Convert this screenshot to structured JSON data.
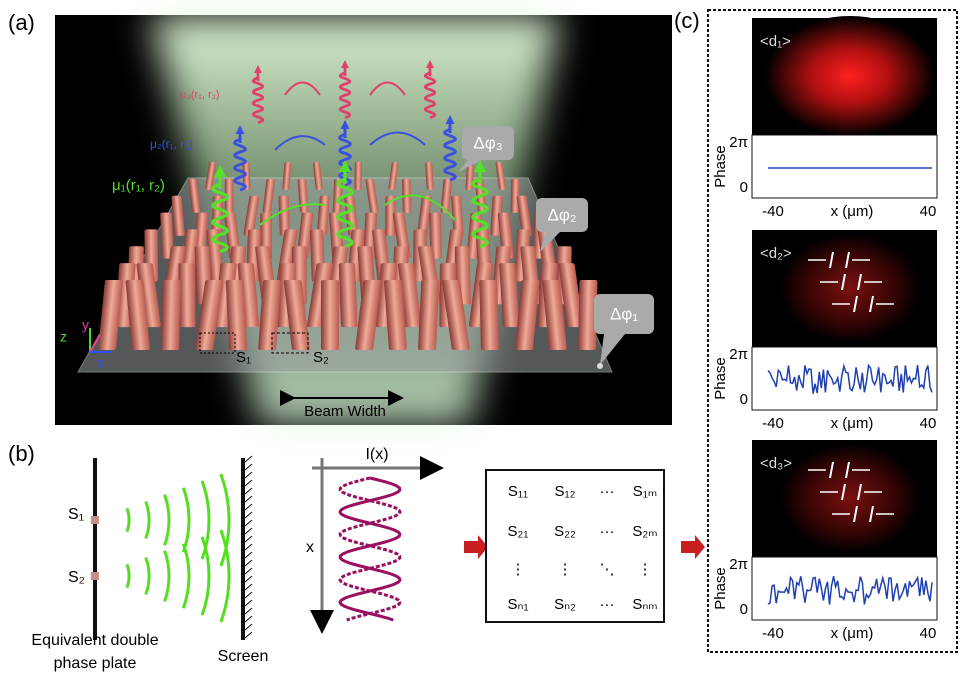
{
  "panel_a": {
    "label": "(a)",
    "mu3": "μ₃(r₁, r₂)",
    "mu2": "μ₂(r₁, r₂)",
    "mu1": "μ₁(r₁, r₂)",
    "dphi3": "Δφ₃",
    "dphi2": "Δφ₂",
    "dphi1": "Δφ₁",
    "s1": "S₁",
    "s2": "S₂",
    "beam_width": "Beam Width",
    "axis_z": "z",
    "axis_y": "y",
    "axis_x": "x"
  },
  "panel_b": {
    "label": "(b)",
    "s1": "S₁",
    "s2": "S₂",
    "plate": [
      "Equivalent double",
      "phase plate"
    ],
    "screen": "Screen",
    "intensity": "I(x)",
    "x_axis": "x",
    "matrix": [
      [
        "S₁₁",
        "S₁₂",
        "···",
        "S₁ₘ"
      ],
      [
        "S₂₁",
        "S₂₂",
        "···",
        "S₂ₘ"
      ],
      [
        "⋮",
        "⋮",
        "⋱",
        "⋮"
      ],
      [
        "Sₙ₁",
        "Sₙ₂",
        "···",
        "Sₙₘ"
      ]
    ]
  },
  "panel_c": {
    "label": "(c)",
    "plots": [
      {
        "image_label": "<d₁>",
        "y_label": "Phase",
        "yticks": [
          "2π",
          0
        ],
        "xticks": [
          -40,
          40
        ],
        "x_label": "x (μm)"
      },
      {
        "image_label": "<d₂>",
        "y_label": "Phase",
        "yticks": [
          "2π",
          0
        ],
        "xticks": [
          -40,
          40
        ],
        "x_label": "x (μm)"
      },
      {
        "image_label": "<d₃>",
        "y_label": "Phase",
        "yticks": [
          "2π",
          0
        ],
        "xticks": [
          -40,
          40
        ],
        "x_label": "x (μm)"
      }
    ]
  }
}
